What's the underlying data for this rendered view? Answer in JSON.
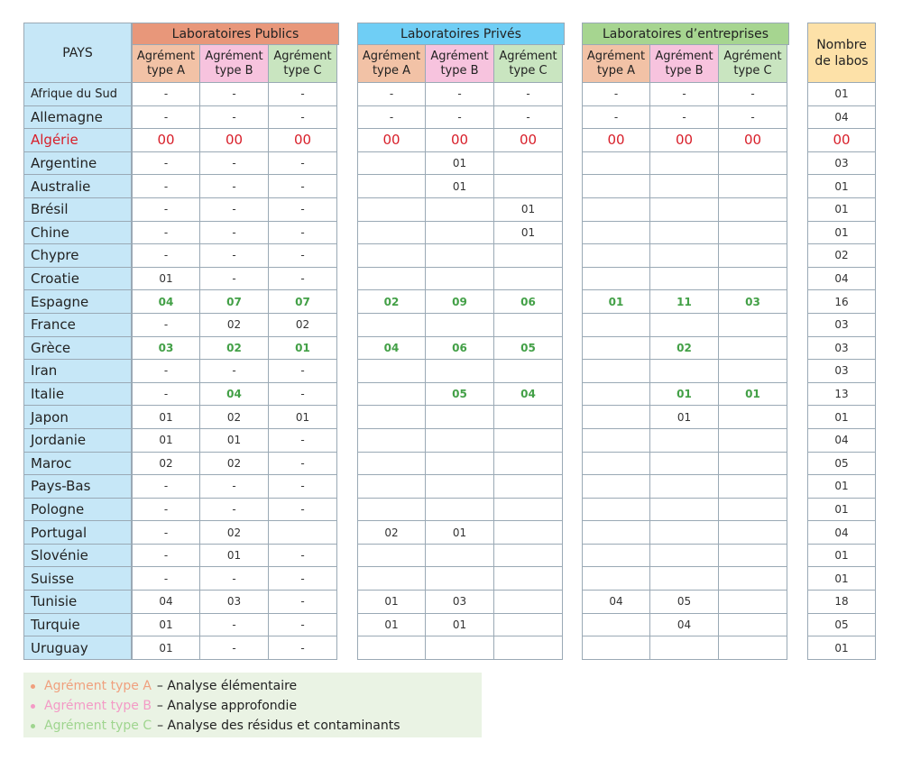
{
  "headers": {
    "pays": "PAYS",
    "groups": [
      "Laboratoires Publics",
      "Laboratoires Privés",
      "Laboratoires d’entreprises"
    ],
    "subs": [
      "Agrément type A",
      "Agrément type B",
      "Agrément type C"
    ],
    "total": "Nombre de labos"
  },
  "colors": {
    "public": "#e8977a",
    "private": "#6fcef5",
    "entreprise": "#a6d590",
    "subA": "#f2c2a6",
    "subB": "#f7c3de",
    "subC": "#c9e5c0",
    "pays_bg": "#c6e7f7",
    "total_bg": "#fde1a8",
    "highlight": "#d81f2a",
    "green_value": "#43a047"
  },
  "rows": [
    {
      "pays": "Afrique du Sud",
      "pub": [
        "-",
        "-",
        "-"
      ],
      "priv": [
        "-",
        "-",
        "-"
      ],
      "ent": [
        "-",
        "-",
        "-"
      ],
      "total": "01"
    },
    {
      "pays": "Allemagne",
      "pub": [
        "-",
        "-",
        "-"
      ],
      "priv": [
        "-",
        "-",
        "-"
      ],
      "ent": [
        "-",
        "-",
        "-"
      ],
      "total": "04"
    },
    {
      "pays": "Algérie",
      "pub": [
        "00",
        "00",
        "00"
      ],
      "priv": [
        "00",
        "00",
        "00"
      ],
      "ent": [
        "00",
        "00",
        "00"
      ],
      "total": "00",
      "highlight": true
    },
    {
      "pays": "Argentine",
      "pub": [
        "-",
        "-",
        "-"
      ],
      "priv": [
        "",
        "01",
        ""
      ],
      "ent": [
        "",
        "",
        ""
      ],
      "total": "03"
    },
    {
      "pays": "Australie",
      "pub": [
        "-",
        "-",
        "-"
      ],
      "priv": [
        "",
        "01",
        ""
      ],
      "ent": [
        "",
        "",
        ""
      ],
      "total": "01"
    },
    {
      "pays": "Brésil",
      "pub": [
        "-",
        "-",
        "-"
      ],
      "priv": [
        "",
        "",
        "01"
      ],
      "ent": [
        "",
        "",
        ""
      ],
      "total": "01"
    },
    {
      "pays": "Chine",
      "pub": [
        "-",
        "-",
        "-"
      ],
      "priv": [
        "",
        "",
        "01"
      ],
      "ent": [
        "",
        "",
        ""
      ],
      "total": "01"
    },
    {
      "pays": "Chypre",
      "pub": [
        "-",
        "-",
        "-"
      ],
      "priv": [
        "",
        "",
        ""
      ],
      "ent": [
        "",
        "",
        ""
      ],
      "total": "02"
    },
    {
      "pays": "Croatie",
      "pub": [
        "01",
        "-",
        "-"
      ],
      "priv": [
        "",
        "",
        ""
      ],
      "ent": [
        "",
        "",
        ""
      ],
      "total": "04"
    },
    {
      "pays": "Espagne",
      "pub": [
        "04",
        "07",
        "07"
      ],
      "priv": [
        "02",
        "09",
        "06"
      ],
      "ent": [
        "01",
        "11",
        "03"
      ],
      "total": "16",
      "green": true
    },
    {
      "pays": "France",
      "pub": [
        "-",
        "02",
        "02"
      ],
      "priv": [
        "",
        "",
        ""
      ],
      "ent": [
        "",
        "",
        ""
      ],
      "total": "03"
    },
    {
      "pays": "Grèce",
      "pub": [
        "03",
        "02",
        "01"
      ],
      "priv": [
        "04",
        "06",
        "05"
      ],
      "ent": [
        "",
        "02",
        ""
      ],
      "total": "03",
      "green": true
    },
    {
      "pays": "Iran",
      "pub": [
        "-",
        "-",
        "-"
      ],
      "priv": [
        "",
        "",
        ""
      ],
      "ent": [
        "",
        "",
        ""
      ],
      "total": "03"
    },
    {
      "pays": "Italie",
      "pub": [
        "-",
        "04",
        "-"
      ],
      "priv": [
        "",
        "05",
        "04"
      ],
      "ent": [
        "",
        "01",
        "01"
      ],
      "total": "13",
      "green": true
    },
    {
      "pays": "Japon",
      "pub": [
        "01",
        "02",
        "01"
      ],
      "priv": [
        "",
        "",
        ""
      ],
      "ent": [
        "",
        "01",
        ""
      ],
      "total": "01"
    },
    {
      "pays": "Jordanie",
      "pub": [
        "01",
        "01",
        "-"
      ],
      "priv": [
        "",
        "",
        ""
      ],
      "ent": [
        "",
        "",
        ""
      ],
      "total": "04"
    },
    {
      "pays": "Maroc",
      "pub": [
        "02",
        "02",
        "-"
      ],
      "priv": [
        "",
        "",
        ""
      ],
      "ent": [
        "",
        "",
        ""
      ],
      "total": "05"
    },
    {
      "pays": "Pays-Bas",
      "pub": [
        "-",
        "-",
        "-"
      ],
      "priv": [
        "",
        "",
        ""
      ],
      "ent": [
        "",
        "",
        ""
      ],
      "total": "01"
    },
    {
      "pays": "Pologne",
      "pub": [
        "-",
        "-",
        "-"
      ],
      "priv": [
        "",
        "",
        ""
      ],
      "ent": [
        "",
        "",
        ""
      ],
      "total": "01"
    },
    {
      "pays": "Portugal",
      "pub": [
        "-",
        "02",
        ""
      ],
      "priv": [
        "02",
        "01",
        ""
      ],
      "ent": [
        "",
        "",
        ""
      ],
      "total": "04"
    },
    {
      "pays": "Slovénie",
      "pub": [
        "-",
        "01",
        "-"
      ],
      "priv": [
        "",
        "",
        ""
      ],
      "ent": [
        "",
        "",
        ""
      ],
      "total": "01"
    },
    {
      "pays": "Suisse",
      "pub": [
        "-",
        "-",
        "-"
      ],
      "priv": [
        "",
        "",
        ""
      ],
      "ent": [
        "",
        "",
        ""
      ],
      "total": "01"
    },
    {
      "pays": "Tunisie",
      "pub": [
        "04",
        "03",
        "-"
      ],
      "priv": [
        "01",
        "03",
        ""
      ],
      "ent": [
        "04",
        "05",
        ""
      ],
      "total": "18"
    },
    {
      "pays": "Turquie",
      "pub": [
        "01",
        "-",
        "-"
      ],
      "priv": [
        "01",
        "01",
        ""
      ],
      "ent": [
        "",
        "04",
        ""
      ],
      "total": "05"
    },
    {
      "pays": "Uruguay",
      "pub": [
        "01",
        "-",
        "-"
      ],
      "priv": [
        "",
        "",
        ""
      ],
      "ent": [
        "",
        "",
        ""
      ],
      "total": "01"
    }
  ],
  "legend": [
    {
      "type": "Agrément type A",
      "desc": "– Analyse élémentaire",
      "color": "#f0a07e"
    },
    {
      "type": "Agrément type B",
      "desc": "– Analyse approfondie",
      "color": "#f49ac6"
    },
    {
      "type": "Agrément type C",
      "desc": "– Analyse des résidus et contaminants",
      "color": "#9fd58f"
    }
  ]
}
